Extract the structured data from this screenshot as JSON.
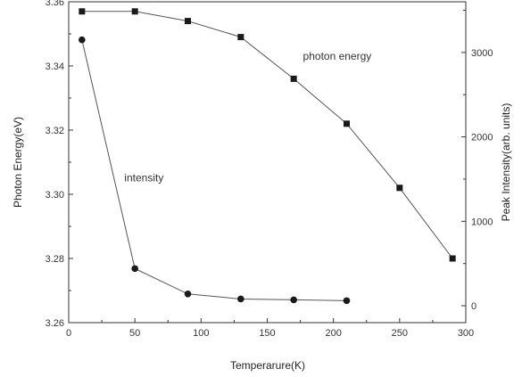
{
  "chart_data": {
    "type": "line",
    "x": {
      "label": "Temperarure(K)",
      "range": [
        0,
        300
      ],
      "ticks": [
        0,
        50,
        100,
        150,
        200,
        250,
        300
      ]
    },
    "y_left": {
      "label": "Photon Energy(eV)",
      "range": [
        3.26,
        3.36
      ],
      "ticks": [
        3.26,
        3.28,
        3.3,
        3.32,
        3.34,
        3.36
      ],
      "tick_labels": [
        "3.26",
        "3.28",
        "3.30",
        "3.32",
        "3.34",
        "3.36"
      ]
    },
    "y_right": {
      "label": "Peak Intensity(arb. units)",
      "range": [
        -200,
        3600
      ],
      "ticks": [
        0,
        1000,
        2000,
        3000
      ],
      "tick_labels": [
        "0",
        "1000",
        "2000",
        "3000"
      ]
    },
    "series": [
      {
        "name": "photon energy",
        "axis": "left",
        "marker": "square",
        "x": [
          10,
          50,
          90,
          130,
          170,
          210,
          250,
          290
        ],
        "y": [
          3.357,
          3.357,
          3.354,
          3.349,
          3.336,
          3.322,
          3.302,
          3.28
        ]
      },
      {
        "name": "intensity",
        "axis": "right",
        "marker": "circle",
        "x": [
          10,
          50,
          90,
          130,
          170,
          210
        ],
        "y": [
          3150,
          440,
          140,
          80,
          70,
          60
        ]
      }
    ],
    "annotations": [
      {
        "text": "photon energy",
        "x": 177,
        "y_axis": "left",
        "y": 3.342
      },
      {
        "text": "intensity",
        "x": 42,
        "y_axis": "left",
        "y": 3.304
      }
    ],
    "grid": false,
    "colors": {
      "line": "#555555",
      "marker": "#1a1a1a",
      "axis": "#333333"
    }
  }
}
